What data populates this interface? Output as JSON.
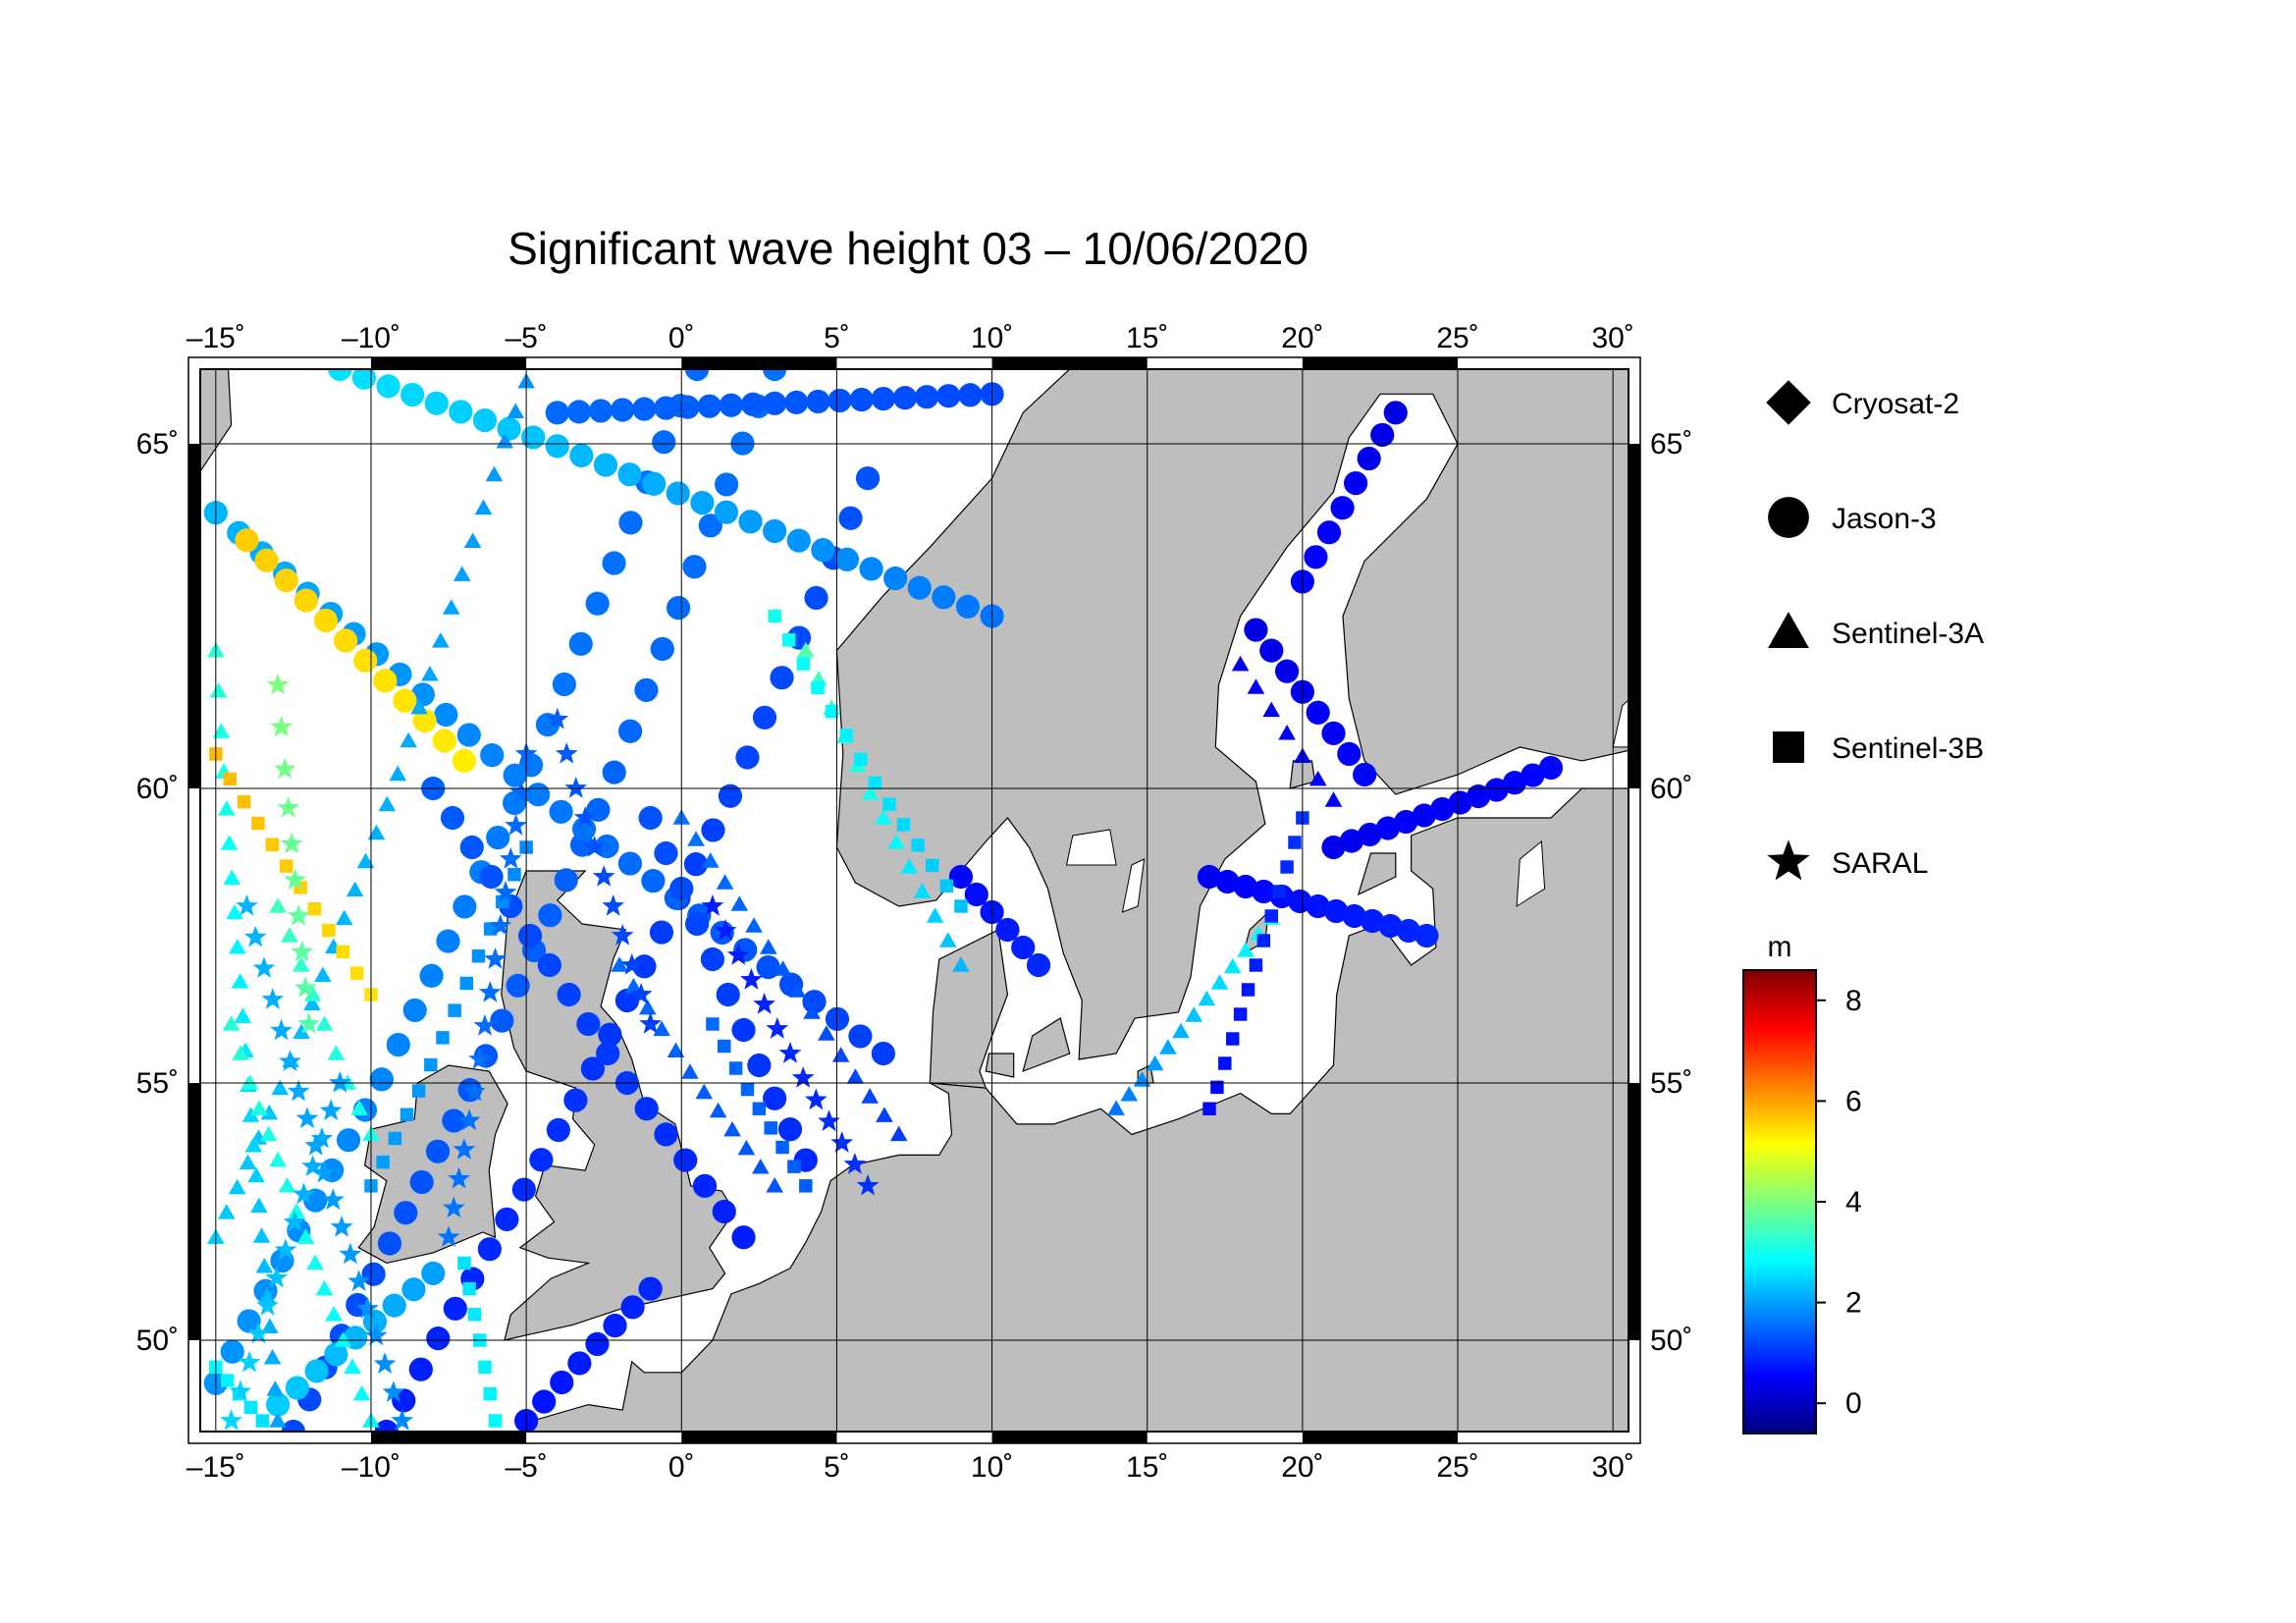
{
  "title": "Significant wave height 03 – 10/06/2020",
  "map": {
    "lon_ticks": [
      {
        "value": -15,
        "label": "–15˚"
      },
      {
        "value": -10,
        "label": "–10˚"
      },
      {
        "value": -5,
        "label": "–5˚"
      },
      {
        "value": 0,
        "label": "0˚"
      },
      {
        "value": 5,
        "label": "5˚"
      },
      {
        "value": 10,
        "label": "10˚"
      },
      {
        "value": 15,
        "label": "15˚"
      },
      {
        "value": 20,
        "label": "20˚"
      },
      {
        "value": 25,
        "label": "25˚"
      },
      {
        "value": 30,
        "label": "30˚"
      }
    ],
    "lat_ticks": [
      {
        "value": 65,
        "label": "65˚"
      },
      {
        "value": 60,
        "label": "60˚"
      },
      {
        "value": 55,
        "label": "55˚"
      },
      {
        "value": 50,
        "label": "50˚"
      }
    ],
    "lon_range": [
      -15.5,
      30.5
    ],
    "lat_range": [
      48.3,
      66.2
    ],
    "land_color": "#bebebe",
    "sea_color": "#ffffff"
  },
  "legend": {
    "satellites": [
      {
        "name": "Cryosat-2",
        "marker": "diamond"
      },
      {
        "name": "Jason-3",
        "marker": "circle"
      },
      {
        "name": "Sentinel-3A",
        "marker": "triangle"
      },
      {
        "name": "Sentinel-3B",
        "marker": "square"
      },
      {
        "name": "SARAL",
        "marker": "star"
      }
    ]
  },
  "colorbar": {
    "unit": "m",
    "range": [
      -0.6,
      8.6
    ],
    "ticks": [
      {
        "value": 8,
        "label": "8"
      },
      {
        "value": 6,
        "label": "6"
      },
      {
        "value": 4,
        "label": "4"
      },
      {
        "value": 2,
        "label": "2"
      },
      {
        "value": 0,
        "label": "0"
      }
    ],
    "colormap": [
      "#00007f",
      "#0000ff",
      "#007fff",
      "#00ffff",
      "#7fff7f",
      "#ffff00",
      "#ff7f00",
      "#ff0000",
      "#7f0000"
    ]
  },
  "tracks": [
    {
      "marker": "circle",
      "from": [
        -15,
        49.2
      ],
      "to": [
        0.5,
        66.2
      ],
      "hs": [
        1.9,
        1.5
      ],
      "step": 0.8
    },
    {
      "marker": "circle",
      "from": [
        -12.5,
        48.3
      ],
      "to": [
        3,
        66.2
      ],
      "hs": [
        1.2,
        1.6
      ],
      "step": 0.8
    },
    {
      "marker": "circle",
      "from": [
        -9.5,
        48.3
      ],
      "to": [
        6,
        64.5
      ],
      "hs": [
        0.8,
        1.3
      ],
      "step": 0.8
    },
    {
      "marker": "circle",
      "from": [
        6.5,
        55.5
      ],
      "to": [
        -15,
        64
      ],
      "hs": [
        1.1,
        2.2
      ],
      "step": 0.8
    },
    {
      "marker": "circle",
      "from": [
        10,
        62.5
      ],
      "to": [
        -11,
        66.2
      ],
      "hs": [
        1.6,
        2.6
      ],
      "step": 0.8
    },
    {
      "marker": "circle",
      "from": [
        -14,
        63.6
      ],
      "to": [
        -7,
        60.4
      ],
      "hs": [
        5.6,
        5.3
      ],
      "step": 0.7
    },
    {
      "marker": "circle",
      "from": [
        -13,
        48.8
      ],
      "to": [
        -8,
        51.3
      ],
      "hs": [
        2.4,
        2.0
      ],
      "step": 0.7
    },
    {
      "marker": "circle",
      "from": [
        2,
        52
      ],
      "to": [
        -8,
        60
      ],
      "hs": [
        0.8,
        1.4
      ],
      "step": 0.8
    },
    {
      "marker": "circle",
      "from": [
        4,
        53.5
      ],
      "to": [
        -1,
        59.5
      ],
      "hs": [
        0.9,
        1.3
      ],
      "step": 0.8
    },
    {
      "marker": "circle",
      "from": [
        -5,
        48.5
      ],
      "to": [
        -1,
        51
      ],
      "hs": [
        0.7,
        0.9
      ],
      "step": 0.7
    },
    {
      "marker": "circle",
      "from": [
        18.5,
        62.3
      ],
      "to": [
        22,
        60.2
      ],
      "hs": [
        0.3,
        0.6
      ],
      "step": 0.6
    },
    {
      "marker": "circle",
      "from": [
        21,
        59
      ],
      "to": [
        28,
        60.3
      ],
      "hs": [
        0.4,
        0.6
      ],
      "step": 0.6
    },
    {
      "marker": "circle",
      "from": [
        17,
        58.5
      ],
      "to": [
        24,
        57.5
      ],
      "hs": [
        0.5,
        0.9
      ],
      "step": 0.6
    },
    {
      "marker": "circle",
      "from": [
        23,
        65.5
      ],
      "to": [
        20,
        63
      ],
      "hs": [
        0.3,
        0.6
      ],
      "step": 0.6
    },
    {
      "marker": "circle",
      "from": [
        9,
        58.5
      ],
      "to": [
        11.5,
        57
      ],
      "hs": [
        0.6,
        0.9
      ],
      "step": 0.6
    },
    {
      "marker": "circle",
      "from": [
        -4,
        65.5
      ],
      "to": [
        10,
        65.8
      ],
      "hs": [
        1.5,
        1.2
      ],
      "step": 0.7
    },
    {
      "marker": "triangle",
      "from": [
        -15,
        52
      ],
      "to": [
        -5,
        66
      ],
      "hs": [
        2.4,
        1.9
      ],
      "step": 0.6
    },
    {
      "marker": "triangle",
      "from": [
        -13,
        48.5
      ],
      "to": [
        -15,
        62
      ],
      "hs": [
        2.0,
        3.2
      ],
      "step": 0.6
    },
    {
      "marker": "triangle",
      "from": [
        0,
        59.5
      ],
      "to": [
        7,
        54
      ],
      "hs": [
        1.6,
        1.1
      ],
      "step": 0.6
    },
    {
      "marker": "triangle",
      "from": [
        -2,
        57
      ],
      "to": [
        3,
        53
      ],
      "hs": [
        1.5,
        1.3
      ],
      "step": 0.6
    },
    {
      "marker": "triangle",
      "from": [
        -10,
        48.5
      ],
      "to": [
        -14.5,
        56
      ],
      "hs": [
        2.8,
        3.2
      ],
      "step": 0.6
    },
    {
      "marker": "triangle",
      "from": [
        4,
        62
      ],
      "to": [
        9,
        57
      ],
      "hs": [
        3.6,
        2.2
      ],
      "step": 0.6
    },
    {
      "marker": "triangle",
      "from": [
        18,
        61.8
      ],
      "to": [
        21,
        59.8
      ],
      "hs": [
        0.4,
        0.5
      ],
      "step": 0.6
    },
    {
      "marker": "triangle",
      "from": [
        14,
        54.5
      ],
      "to": [
        19,
        57.8
      ],
      "hs": [
        1.6,
        3.0
      ],
      "step": 0.5
    },
    {
      "marker": "triangle",
      "from": [
        -13,
        58
      ],
      "to": [
        -10,
        54
      ],
      "hs": [
        3.4,
        3.0
      ],
      "step": 0.6
    },
    {
      "marker": "square",
      "from": [
        -15,
        60.5
      ],
      "to": [
        -10,
        56.5
      ],
      "hs": [
        5.8,
        5.4
      ],
      "step": 0.6
    },
    {
      "marker": "square",
      "from": [
        -15,
        49.5
      ],
      "to": [
        -13.5,
        48.5
      ],
      "hs": [
        2.8,
        2.6
      ],
      "step": 0.5
    },
    {
      "marker": "square",
      "from": [
        -10,
        53
      ],
      "to": [
        -5,
        59
      ],
      "hs": [
        2.0,
        1.8
      ],
      "step": 0.6
    },
    {
      "marker": "square",
      "from": [
        3,
        62.5
      ],
      "to": [
        9,
        58
      ],
      "hs": [
        3.0,
        2.3
      ],
      "step": 0.6
    },
    {
      "marker": "square",
      "from": [
        -7,
        51.5
      ],
      "to": [
        -6,
        48.5
      ],
      "hs": [
        2.6,
        2.8
      ],
      "step": 0.5
    },
    {
      "marker": "square",
      "from": [
        17,
        54.5
      ],
      "to": [
        20,
        59.5
      ],
      "hs": [
        0.6,
        1.0
      ],
      "step": 0.5
    },
    {
      "marker": "square",
      "from": [
        1,
        56
      ],
      "to": [
        4,
        53
      ],
      "hs": [
        1.5,
        1.4
      ],
      "step": 0.5
    },
    {
      "marker": "star",
      "from": [
        -14.5,
        48.5
      ],
      "to": [
        -11,
        55
      ],
      "hs": [
        2.5,
        2.0
      ],
      "step": 0.6
    },
    {
      "marker": "star",
      "from": [
        -9,
        48.5
      ],
      "to": [
        -14,
        58
      ],
      "hs": [
        1.8,
        2.2
      ],
      "step": 0.6
    },
    {
      "marker": "star",
      "from": [
        1,
        58
      ],
      "to": [
        6,
        53
      ],
      "hs": [
        0.8,
        1.0
      ],
      "step": 0.6
    },
    {
      "marker": "star",
      "from": [
        -4,
        61
      ],
      "to": [
        -1,
        56
      ],
      "hs": [
        1.4,
        1.1
      ],
      "step": 0.6
    },
    {
      "marker": "star",
      "from": [
        -5,
        60.5
      ],
      "to": [
        -7.5,
        52
      ],
      "hs": [
        1.5,
        1.6
      ],
      "step": 0.6
    },
    {
      "marker": "star",
      "from": [
        -13,
        61.5
      ],
      "to": [
        -12,
        56
      ],
      "hs": [
        4.0,
        3.6
      ],
      "step": 0.6
    }
  ]
}
